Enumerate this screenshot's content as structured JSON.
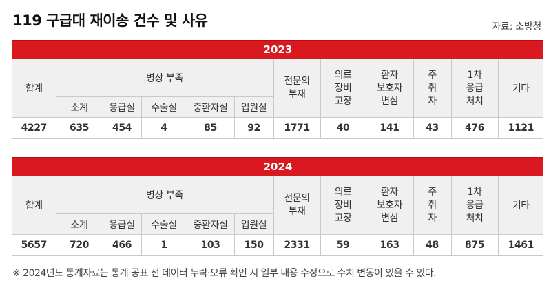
{
  "title": "119 구급대 재이송 건수 및 사유",
  "source": "자료: 소방청",
  "columns": {
    "total": "합계",
    "bed_group": "병상 부족",
    "bed_sub": [
      "소계",
      "응급실",
      "수술실",
      "중환자실",
      "입원실"
    ],
    "specialist": [
      "전문의",
      "부재"
    ],
    "equipment": [
      "의료",
      "장비",
      "고장"
    ],
    "guardian": [
      "환자",
      "보호자",
      "변심"
    ],
    "drunk": [
      "주",
      "취",
      "자"
    ],
    "first_aid": [
      "1차",
      "응급",
      "처치"
    ],
    "other": "기타"
  },
  "tables": [
    {
      "year": "2023",
      "values": [
        "4227",
        "635",
        "454",
        "4",
        "85",
        "92",
        "1771",
        "40",
        "141",
        "43",
        "476",
        "1121"
      ]
    },
    {
      "year": "2024",
      "values": [
        "5657",
        "720",
        "466",
        "1",
        "103",
        "150",
        "2331",
        "59",
        "163",
        "48",
        "875",
        "1461"
      ]
    }
  ],
  "note": "※ 2024년도 통계자료는 통계 공표 전 데이터 누락·오류 확인 시 일부 내용 수정으로 수치 변동이 있을 수 있다."
}
